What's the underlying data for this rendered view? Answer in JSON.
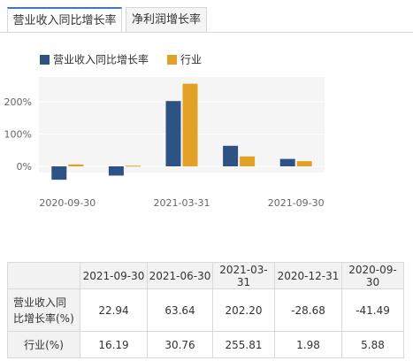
{
  "tabs": [
    {
      "label": "营业收入同比增长率",
      "active": true
    },
    {
      "label": "净利润增长率",
      "active": false
    }
  ],
  "colors": {
    "series_revenue": "#2e5283",
    "series_industry": "#e2a124",
    "plot_bg": "#f5f5f5",
    "tab_accent": "#3a78c3"
  },
  "chart_data": {
    "type": "bar",
    "categories": [
      "2021-09-30",
      "2021-06-30",
      "2021-03-31",
      "2020-12-31",
      "2020-09-30"
    ],
    "x_tick_labels": [
      "2020-09-30",
      "2021-03-31",
      "2021-09-30"
    ],
    "y_tick_labels": [
      "0%",
      "100%",
      "200%"
    ],
    "ylim": [
      -50,
      270
    ],
    "legend_placement": "top",
    "series": [
      {
        "name": "营业收入同比增长率",
        "values": [
          22.94,
          63.64,
          202.2,
          -28.68,
          -41.49
        ]
      },
      {
        "name": "行业",
        "values": [
          16.19,
          30.76,
          255.81,
          1.98,
          5.88
        ]
      }
    ]
  },
  "table": {
    "corner": "",
    "headers": [
      "2021-09-30",
      "2021-06-30",
      "2021-03-31",
      "2020-12-31",
      "2020-09-30"
    ],
    "rows": [
      {
        "label": "营业收入同比增长率(%)",
        "label_line1": "营业收入同",
        "label_line2": "比增长率(%)",
        "values": [
          "22.94",
          "63.64",
          "202.20",
          "-28.68",
          "-41.49"
        ]
      },
      {
        "label": "行业(%)",
        "values": [
          "16.19",
          "30.76",
          "255.81",
          "1.98",
          "5.88"
        ]
      }
    ]
  }
}
